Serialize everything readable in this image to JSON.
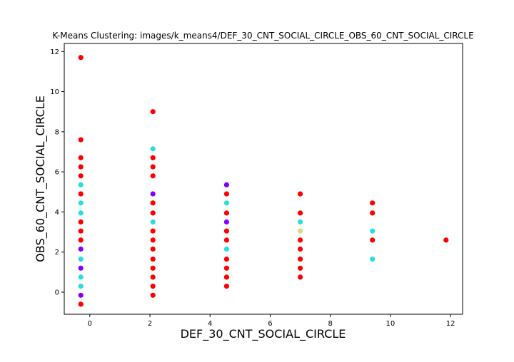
{
  "chart_data": {
    "type": "scatter",
    "title": "K-Means Clustering: images/k_means4/DEF_30_CNT_SOCIAL_CIRCLE_OBS_60_CNT_SOCIAL_CIRCLE",
    "xlabel": "DEF_30_CNT_SOCIAL_CIRCLE",
    "ylabel": "OBS_60_CNT_SOCIAL_CIRCLE",
    "xlim": [
      -0.85,
      12.4
    ],
    "ylim": [
      -1.1,
      12.4
    ],
    "xticks": [
      "0",
      "2",
      "4",
      "6",
      "8",
      "10",
      "12"
    ],
    "yticks": [
      "0",
      "2",
      "4",
      "6",
      "8",
      "10",
      "12"
    ],
    "grid": false,
    "colors": {
      "cluster_purple": "#8000ff",
      "cluster_cyan": "#2adddd",
      "cluster_khaki": "#d4dd80",
      "cluster_red": "#ff0000"
    },
    "series": [
      {
        "color": "#ff0000",
        "points": [
          [
            -0.3,
            11.7
          ],
          [
            -0.3,
            7.6
          ],
          [
            -0.3,
            6.7
          ],
          [
            -0.3,
            6.25
          ],
          [
            -0.3,
            5.8
          ],
          [
            -0.3,
            4.9
          ],
          [
            -0.3,
            3.5
          ],
          [
            -0.3,
            3.05
          ],
          [
            -0.3,
            2.6
          ],
          [
            -0.3,
            -0.6
          ],
          [
            2.1,
            9.0
          ],
          [
            2.1,
            6.7
          ],
          [
            2.1,
            6.25
          ],
          [
            2.1,
            5.8
          ],
          [
            2.1,
            4.45
          ],
          [
            2.1,
            3.95
          ],
          [
            2.1,
            3.05
          ],
          [
            2.1,
            2.6
          ],
          [
            2.1,
            2.15
          ],
          [
            2.1,
            1.65
          ],
          [
            2.1,
            1.2
          ],
          [
            2.1,
            0.75
          ],
          [
            2.1,
            0.3
          ],
          [
            2.1,
            -0.15
          ],
          [
            4.55,
            4.9
          ],
          [
            4.55,
            3.95
          ],
          [
            4.55,
            3.05
          ],
          [
            4.55,
            2.6
          ],
          [
            4.55,
            1.65
          ],
          [
            4.55,
            1.2
          ],
          [
            4.55,
            0.75
          ],
          [
            4.55,
            0.3
          ],
          [
            7.0,
            4.9
          ],
          [
            7.0,
            3.95
          ],
          [
            7.0,
            2.6
          ],
          [
            7.0,
            2.15
          ],
          [
            7.0,
            1.65
          ],
          [
            7.0,
            1.2
          ],
          [
            7.0,
            0.75
          ],
          [
            9.4,
            4.45
          ],
          [
            9.4,
            3.95
          ],
          [
            9.4,
            2.6
          ],
          [
            11.85,
            2.6
          ]
        ]
      },
      {
        "color": "#2adddd",
        "points": [
          [
            -0.3,
            5.35
          ],
          [
            -0.3,
            4.45
          ],
          [
            -0.3,
            3.95
          ],
          [
            -0.3,
            1.65
          ],
          [
            -0.3,
            0.75
          ],
          [
            -0.3,
            0.3
          ],
          [
            2.1,
            7.15
          ],
          [
            2.1,
            3.5
          ],
          [
            4.55,
            4.45
          ],
          [
            4.55,
            2.15
          ],
          [
            7.0,
            3.5
          ],
          [
            9.4,
            3.05
          ],
          [
            9.4,
            1.65
          ]
        ]
      },
      {
        "color": "#8000ff",
        "points": [
          [
            -0.3,
            2.15
          ],
          [
            -0.3,
            1.2
          ],
          [
            -0.3,
            -0.15
          ],
          [
            2.1,
            4.9
          ],
          [
            4.55,
            5.35
          ],
          [
            4.55,
            3.5
          ]
        ]
      },
      {
        "color": "#d4dd80",
        "points": [
          [
            7.0,
            3.05
          ]
        ]
      }
    ]
  }
}
